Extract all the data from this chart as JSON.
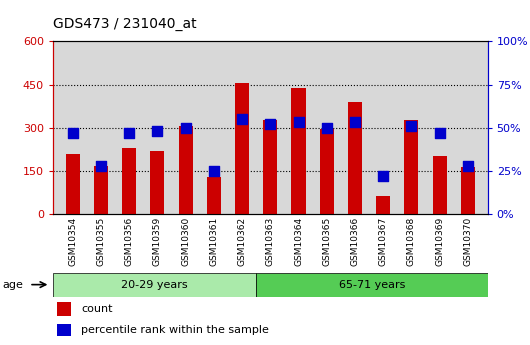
{
  "title": "GDS473 / 231040_at",
  "samples": [
    "GSM10354",
    "GSM10355",
    "GSM10356",
    "GSM10359",
    "GSM10360",
    "GSM10361",
    "GSM10362",
    "GSM10363",
    "GSM10364",
    "GSM10365",
    "GSM10366",
    "GSM10367",
    "GSM10368",
    "GSM10369",
    "GSM10370"
  ],
  "counts": [
    210,
    168,
    228,
    218,
    305,
    128,
    455,
    328,
    438,
    295,
    388,
    63,
    328,
    202,
    162
  ],
  "percentiles": [
    47,
    28,
    47,
    48,
    50,
    25,
    55,
    52,
    53,
    50,
    53,
    22,
    51,
    47,
    28
  ],
  "group1_label": "20-29 years",
  "group2_label": "65-71 years",
  "group1_count": 7,
  "group2_count": 8,
  "ylim_left": [
    0,
    600
  ],
  "ylim_right": [
    0,
    100
  ],
  "yticks_left": [
    0,
    150,
    300,
    450,
    600
  ],
  "yticks_right": [
    0,
    25,
    50,
    75,
    100
  ],
  "bar_color": "#cc0000",
  "dot_color": "#0000cc",
  "bg_plot": "#d8d8d8",
  "bg_group1": "#aaeaaa",
  "bg_group2": "#55cc55",
  "legend_count_label": "count",
  "legend_pct_label": "percentile rank within the sample",
  "bar_width": 0.5,
  "dot_size": 55
}
